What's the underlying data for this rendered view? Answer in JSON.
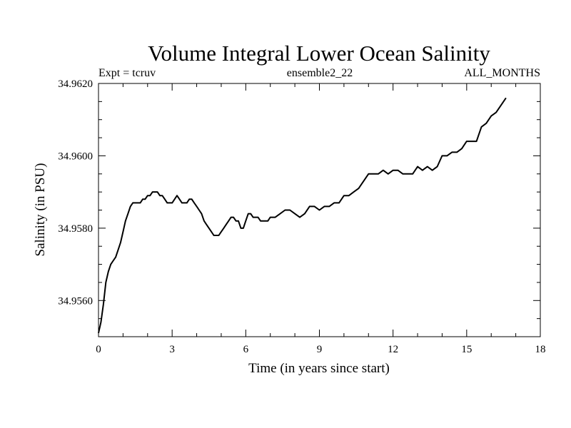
{
  "chart_data": {
    "type": "line",
    "title": "Volume Integral Lower Ocean Salinity",
    "subtitle_left": "Expt = tcruv",
    "subtitle_center": "ensemble2_22",
    "subtitle_right": "ALL_MONTHS",
    "xlabel": "Time (in years since start)",
    "ylabel": "Salinity (in PSU)",
    "xlim": [
      0,
      18
    ],
    "ylim": [
      34.955,
      34.962
    ],
    "xticks": [
      0,
      3,
      6,
      9,
      12,
      15,
      18
    ],
    "xtick_labels": [
      "0",
      "3",
      "6",
      "9",
      "12",
      "15",
      "18"
    ],
    "yticks": [
      34.956,
      34.958,
      34.96,
      34.962
    ],
    "ytick_labels": [
      "34.9560",
      "34.9580",
      "34.9600",
      "34.9620"
    ],
    "grid": false,
    "line_color": "#000000",
    "series": [
      {
        "x": [
          0.0,
          0.1,
          0.2,
          0.3,
          0.4,
          0.5,
          0.6,
          0.7,
          0.8,
          0.9,
          1.0,
          1.1,
          1.2,
          1.3,
          1.4,
          1.5,
          1.6,
          1.7,
          1.8,
          1.9,
          2.0,
          2.1,
          2.2,
          2.3,
          2.4,
          2.5,
          2.6,
          2.7,
          2.8,
          2.9,
          3.0,
          3.1,
          3.2,
          3.3,
          3.4,
          3.5,
          3.6,
          3.7,
          3.8,
          3.9,
          4.0,
          4.1,
          4.2,
          4.3,
          4.4,
          4.5,
          4.6,
          4.7,
          4.8,
          4.9,
          5.0,
          5.1,
          5.2,
          5.3,
          5.4,
          5.5,
          5.6,
          5.7,
          5.8,
          5.9,
          6.0,
          6.1,
          6.2,
          6.3,
          6.4,
          6.5,
          6.6,
          6.7,
          6.8,
          6.9,
          7.0,
          7.2,
          7.4,
          7.6,
          7.8,
          8.0,
          8.2,
          8.4,
          8.6,
          8.8,
          9.0,
          9.2,
          9.4,
          9.6,
          9.8,
          10.0,
          10.2,
          10.4,
          10.6,
          10.8,
          11.0,
          11.2,
          11.4,
          11.6,
          11.8,
          12.0,
          12.2,
          12.4,
          12.6,
          12.8,
          13.0,
          13.2,
          13.4,
          13.6,
          13.8,
          14.0,
          14.2,
          14.4,
          14.6,
          14.8,
          15.0,
          15.2,
          15.4,
          15.6,
          15.8,
          16.0,
          16.2,
          16.4,
          16.6
        ],
        "y": [
          34.9551,
          34.9554,
          34.9559,
          34.9565,
          34.9568,
          34.957,
          34.9571,
          34.9572,
          34.9574,
          34.9576,
          34.9579,
          34.9582,
          34.9584,
          34.9586,
          34.9587,
          34.9587,
          34.9587,
          34.9587,
          34.9588,
          34.9588,
          34.9589,
          34.9589,
          34.959,
          34.959,
          34.959,
          34.9589,
          34.9589,
          34.9588,
          34.9587,
          34.9587,
          34.9587,
          34.9588,
          34.9589,
          34.9588,
          34.9587,
          34.9587,
          34.9587,
          34.9588,
          34.9588,
          34.9587,
          34.9586,
          34.9585,
          34.9584,
          34.9582,
          34.9581,
          34.958,
          34.9579,
          34.9578,
          34.9578,
          34.9578,
          34.9579,
          34.958,
          34.9581,
          34.9582,
          34.9583,
          34.9583,
          34.9582,
          34.9582,
          34.958,
          34.958,
          34.9582,
          34.9584,
          34.9584,
          34.9583,
          34.9583,
          34.9583,
          34.9582,
          34.9582,
          34.9582,
          34.9582,
          34.9583,
          34.9583,
          34.9584,
          34.9585,
          34.9585,
          34.9584,
          34.9583,
          34.9584,
          34.9586,
          34.9586,
          34.9585,
          34.9586,
          34.9586,
          34.9587,
          34.9587,
          34.9589,
          34.9589,
          34.959,
          34.9591,
          34.9593,
          34.9595,
          34.9595,
          34.9595,
          34.9596,
          34.9595,
          34.9596,
          34.9596,
          34.9595,
          34.9595,
          34.9595,
          34.9597,
          34.9596,
          34.9597,
          34.9596,
          34.9597,
          34.96,
          34.96,
          34.9601,
          34.9601,
          34.9602,
          34.9604,
          34.9604,
          34.9604,
          34.9608,
          34.9609,
          34.9611,
          34.9612,
          34.9614,
          34.9616
        ]
      }
    ]
  }
}
